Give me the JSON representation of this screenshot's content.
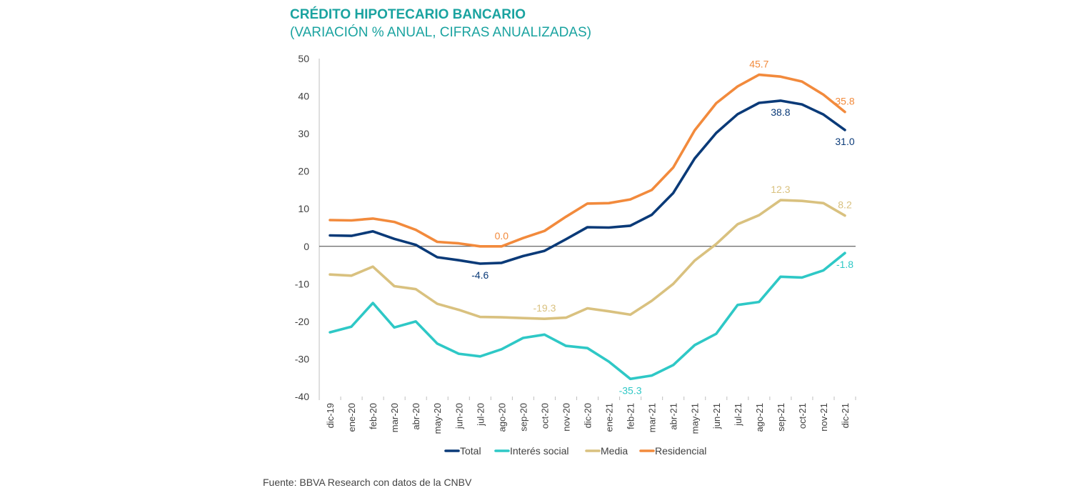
{
  "header": {
    "title": "CRÉDITO HIPOTECARIO BANCARIO",
    "subtitle": "(VARIACIÓN % ANUAL, CIFRAS ANUALIZADAS)"
  },
  "footer": {
    "source": "Fuente: BBVA Research con datos de la CNBV"
  },
  "chart_data": {
    "type": "line",
    "title": "CRÉDITO HIPOTECARIO BANCARIO",
    "subtitle": "(VARIACIÓN % ANUAL, CIFRAS ANUALIZADAS)",
    "xlabel": "",
    "ylabel": "",
    "ylim": [
      -40,
      50
    ],
    "yticks": [
      50,
      40,
      30,
      20,
      10,
      0,
      -10,
      -20,
      -30,
      -40
    ],
    "grid": false,
    "legend_position": "bottom",
    "categories": [
      "dic-19",
      "ene-20",
      "feb-20",
      "mar-20",
      "abr-20",
      "may-20",
      "jun-20",
      "jul-20",
      "ago-20",
      "sep-20",
      "oct-20",
      "nov-20",
      "dic-20",
      "ene-21",
      "feb-21",
      "mar-21",
      "abr-21",
      "may-21",
      "jun-21",
      "jul-21",
      "ago-21",
      "sep-21",
      "oct-21",
      "nov-21",
      "dic-21"
    ],
    "series": [
      {
        "name": "Total",
        "color": "#0a3a78",
        "values": [
          2.9,
          2.8,
          4.0,
          2.0,
          0.4,
          -2.9,
          -3.7,
          -4.6,
          -4.4,
          -2.6,
          -1.2,
          1.9,
          5.1,
          5.0,
          5.5,
          8.4,
          14.2,
          23.4,
          30.2,
          35.2,
          38.2,
          38.8,
          37.8,
          35.1,
          31.0
        ],
        "labels": [
          {
            "index": 7,
            "text": "-4.6",
            "pos": "below"
          },
          {
            "index": 21,
            "text": "38.8",
            "pos": "below"
          },
          {
            "index": 24,
            "text": "31.0",
            "pos": "below"
          }
        ]
      },
      {
        "name": "Interés social",
        "color": "#2ec8c6",
        "values": [
          -22.9,
          -21.4,
          -15.1,
          -21.6,
          -20.0,
          -25.9,
          -28.6,
          -29.3,
          -27.4,
          -24.4,
          -23.5,
          -26.5,
          -27.1,
          -30.7,
          -35.3,
          -34.4,
          -31.6,
          -26.3,
          -23.3,
          -15.6,
          -14.8,
          -8.1,
          -8.3,
          -6.4,
          -1.8
        ],
        "labels": [
          {
            "index": 14,
            "text": "-35.3",
            "pos": "below"
          },
          {
            "index": 24,
            "text": "-1.8",
            "pos": "below"
          }
        ]
      },
      {
        "name": "Media",
        "color": "#d9c17f",
        "values": [
          -7.5,
          -7.8,
          -5.4,
          -10.6,
          -11.4,
          -15.3,
          -16.9,
          -18.8,
          -18.9,
          -19.1,
          -19.3,
          -19.0,
          -16.5,
          -17.3,
          -18.2,
          -14.5,
          -10.0,
          -3.8,
          0.6,
          5.9,
          8.3,
          12.3,
          12.1,
          11.5,
          8.2
        ],
        "labels": [
          {
            "index": 10,
            "text": "-19.3",
            "pos": "above"
          },
          {
            "index": 21,
            "text": "12.3",
            "pos": "above"
          },
          {
            "index": 24,
            "text": "8.2",
            "pos": "above"
          }
        ]
      },
      {
        "name": "Residencial",
        "color": "#f28a3c",
        "values": [
          7.0,
          6.9,
          7.4,
          6.5,
          4.4,
          1.2,
          0.8,
          0.0,
          0.0,
          2.2,
          4.1,
          7.9,
          11.4,
          11.5,
          12.5,
          15.0,
          21.0,
          30.9,
          38.1,
          42.6,
          45.7,
          45.2,
          43.9,
          40.4,
          35.8
        ],
        "labels": [
          {
            "index": 8,
            "text": "0.0",
            "pos": "above"
          },
          {
            "index": 20,
            "text": "45.7",
            "pos": "above"
          },
          {
            "index": 24,
            "text": "35.8",
            "pos": "above"
          }
        ]
      }
    ]
  }
}
